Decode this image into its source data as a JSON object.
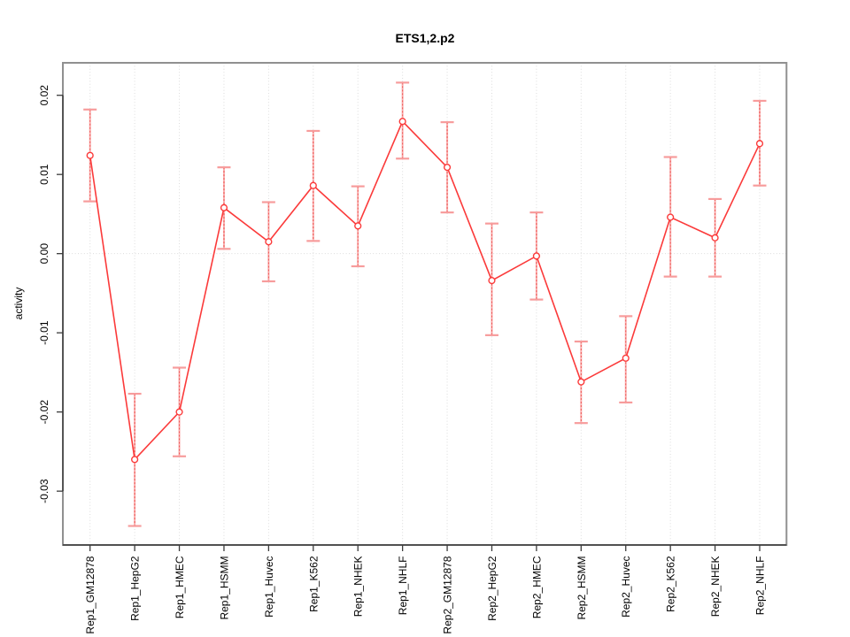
{
  "chart_data": {
    "type": "line",
    "title": "ETS1,2.p2",
    "xlabel": "",
    "ylabel": "activity",
    "legend": "none",
    "grid": {
      "vertical_gridlines": true,
      "horizontal_zero_line": true,
      "style": "dotted"
    },
    "marker": "open-circle",
    "error_bars": true,
    "categories": [
      "Rep1_GM12878",
      "Rep1_HepG2",
      "Rep1_HMEC",
      "Rep1_HSMM",
      "Rep1_Huvec",
      "Rep1_K562",
      "Rep1_NHEK",
      "Rep1_NHLF",
      "Rep2_GM12878",
      "Rep2_HepG2",
      "Rep2_HMEC",
      "Rep2_HSMM",
      "Rep2_Huvec",
      "Rep2_K562",
      "Rep2_NHEK",
      "Rep2_NHLF"
    ],
    "series": [
      {
        "name": "activity",
        "values": [
          0.0124,
          -0.026,
          -0.02,
          0.0058,
          0.0015,
          0.0086,
          0.0035,
          0.0167,
          0.0109,
          -0.0034,
          -0.0003,
          -0.0162,
          -0.0132,
          0.0046,
          0.002,
          0.0139
        ],
        "ci_low": [
          0.0066,
          -0.0344,
          -0.0256,
          0.0006,
          -0.0035,
          0.0016,
          -0.0016,
          0.012,
          0.0052,
          -0.0103,
          -0.0058,
          -0.0214,
          -0.0188,
          -0.0029,
          -0.0029,
          0.0086
        ],
        "ci_high": [
          0.0182,
          -0.0177,
          -0.0144,
          0.0109,
          0.0065,
          0.0155,
          0.0085,
          0.0216,
          0.0166,
          0.0038,
          0.0052,
          -0.0111,
          -0.0079,
          0.0122,
          0.0069,
          0.0193
        ]
      }
    ],
    "yticks": [
      0.02,
      0.01,
      0,
      -0.01,
      -0.02,
      -0.03
    ],
    "ytick_labels": [
      "0.02",
      "0.01",
      "0.00",
      "-0.01",
      "-0.02",
      "-0.03"
    ],
    "ylim": [
      -0.0368,
      0.0241
    ],
    "colors": {
      "line": "#fb3a3a",
      "marker": "#fb3a3a",
      "error_bar": "#f9b0b0",
      "error_bar_dash": "#ef5350",
      "error_cap": "#f79c9c",
      "grid": "#dcdcdc",
      "frame": "#909090",
      "axis": "#3c3c3c",
      "text": "#000000",
      "background": "#ffffff"
    }
  }
}
